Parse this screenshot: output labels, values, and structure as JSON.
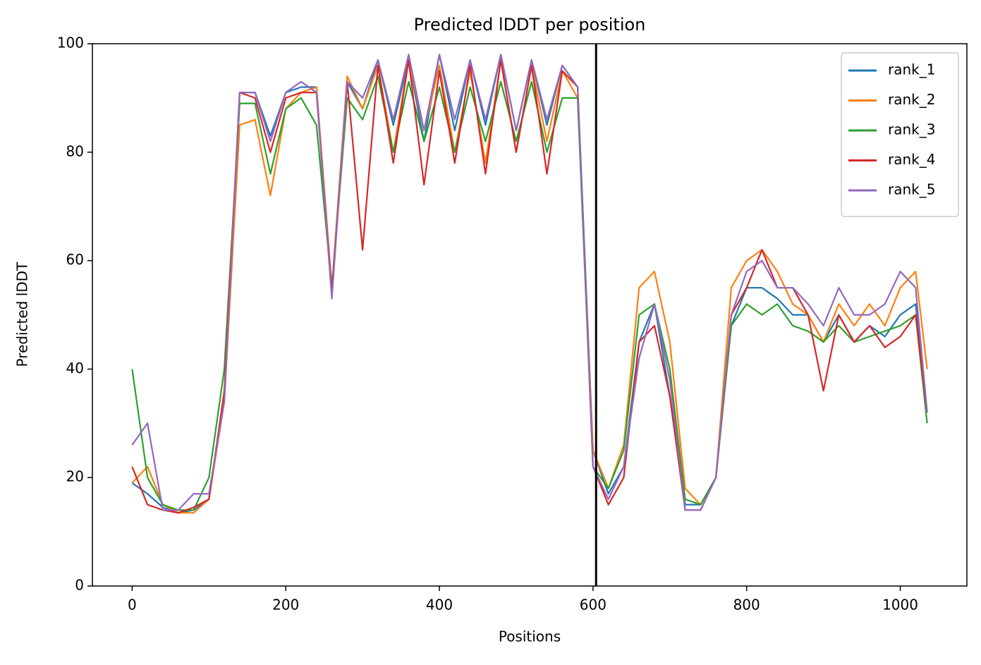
{
  "chart_data": {
    "type": "line",
    "title": "Predicted lDDT per position",
    "x_label": "Positions",
    "y_label": "Predicted lDDT",
    "x": [
      0,
      20,
      40,
      60,
      80,
      100,
      120,
      140,
      160,
      180,
      200,
      220,
      240,
      260,
      280,
      300,
      320,
      340,
      360,
      380,
      400,
      420,
      440,
      460,
      480,
      500,
      520,
      540,
      560,
      580,
      600,
      620,
      640,
      660,
      680,
      700,
      720,
      740,
      760,
      780,
      800,
      820,
      840,
      860,
      880,
      900,
      920,
      940,
      960,
      980,
      1000,
      1020,
      1035
    ],
    "series": [
      {
        "name": "rank_1",
        "color": "#1f77b4",
        "values": [
          19,
          17,
          14.5,
          13.5,
          14,
          16,
          35,
          91,
          91,
          83,
          91,
          92,
          92,
          54,
          93,
          88,
          97,
          85,
          97,
          82,
          98,
          84,
          97,
          85,
          98,
          84,
          97,
          85,
          96,
          92,
          25,
          17,
          22,
          45,
          52,
          35,
          15,
          15,
          20,
          48,
          55,
          55,
          53,
          50,
          50,
          45,
          50,
          45,
          48,
          46,
          50,
          52,
          32
        ]
      },
      {
        "name": "rank_2",
        "color": "#ff7f0e",
        "values": [
          19,
          22,
          15,
          13.5,
          13.5,
          16,
          34,
          85,
          86,
          72,
          88,
          91,
          92,
          55,
          94,
          88,
          96,
          80,
          97,
          84,
          96,
          80,
          95,
          78,
          97,
          80,
          96,
          82,
          95,
          90,
          25,
          18,
          26,
          55,
          58,
          45,
          18,
          15,
          20,
          55,
          60,
          62,
          58,
          52,
          50,
          45,
          52,
          48,
          52,
          48,
          55,
          58,
          40
        ]
      },
      {
        "name": "rank_3",
        "color": "#2ca02c",
        "values": [
          40,
          20,
          15,
          14,
          14,
          20,
          40,
          89,
          89,
          76,
          88,
          90,
          85,
          55,
          90,
          86,
          94,
          80,
          93,
          82,
          92,
          80,
          92,
          82,
          93,
          82,
          93,
          80,
          90,
          90,
          22,
          18,
          25,
          50,
          52,
          40,
          16,
          15,
          20,
          48,
          52,
          50,
          52,
          48,
          47,
          45,
          48,
          45,
          46,
          47,
          48,
          50,
          30
        ]
      },
      {
        "name": "rank_4",
        "color": "#d62728",
        "values": [
          22,
          15,
          14,
          13.5,
          14.5,
          16,
          36,
          91,
          90,
          80,
          90,
          91,
          91,
          54,
          93,
          62,
          96,
          78,
          97,
          74,
          95,
          78,
          96,
          76,
          97,
          80,
          96,
          76,
          95,
          92,
          22,
          15,
          20,
          45,
          48,
          35,
          14,
          14,
          20,
          50,
          55,
          62,
          55,
          55,
          50,
          36,
          50,
          45,
          48,
          44,
          46,
          50,
          32
        ]
      },
      {
        "name": "rank_5",
        "color": "#9467bd",
        "values": [
          26,
          30,
          14,
          14,
          17,
          17,
          34,
          91,
          91,
          82,
          91,
          93,
          91,
          53,
          93,
          90,
          97,
          86,
          98,
          84,
          98,
          86,
          97,
          86,
          98,
          84,
          97,
          86,
          96,
          92,
          22,
          16,
          22,
          42,
          52,
          38,
          14,
          14,
          20,
          50,
          58,
          60,
          55,
          55,
          52,
          48,
          55,
          50,
          50,
          52,
          58,
          55,
          32
        ]
      }
    ],
    "vline": 604,
    "xlim": [
      -51.75,
      1086.75
    ],
    "ylim": [
      0,
      100
    ],
    "xticks": [
      0,
      200,
      400,
      600,
      800,
      1000
    ],
    "yticks": [
      0,
      20,
      40,
      60,
      80,
      100
    ],
    "legend": "upper right"
  }
}
